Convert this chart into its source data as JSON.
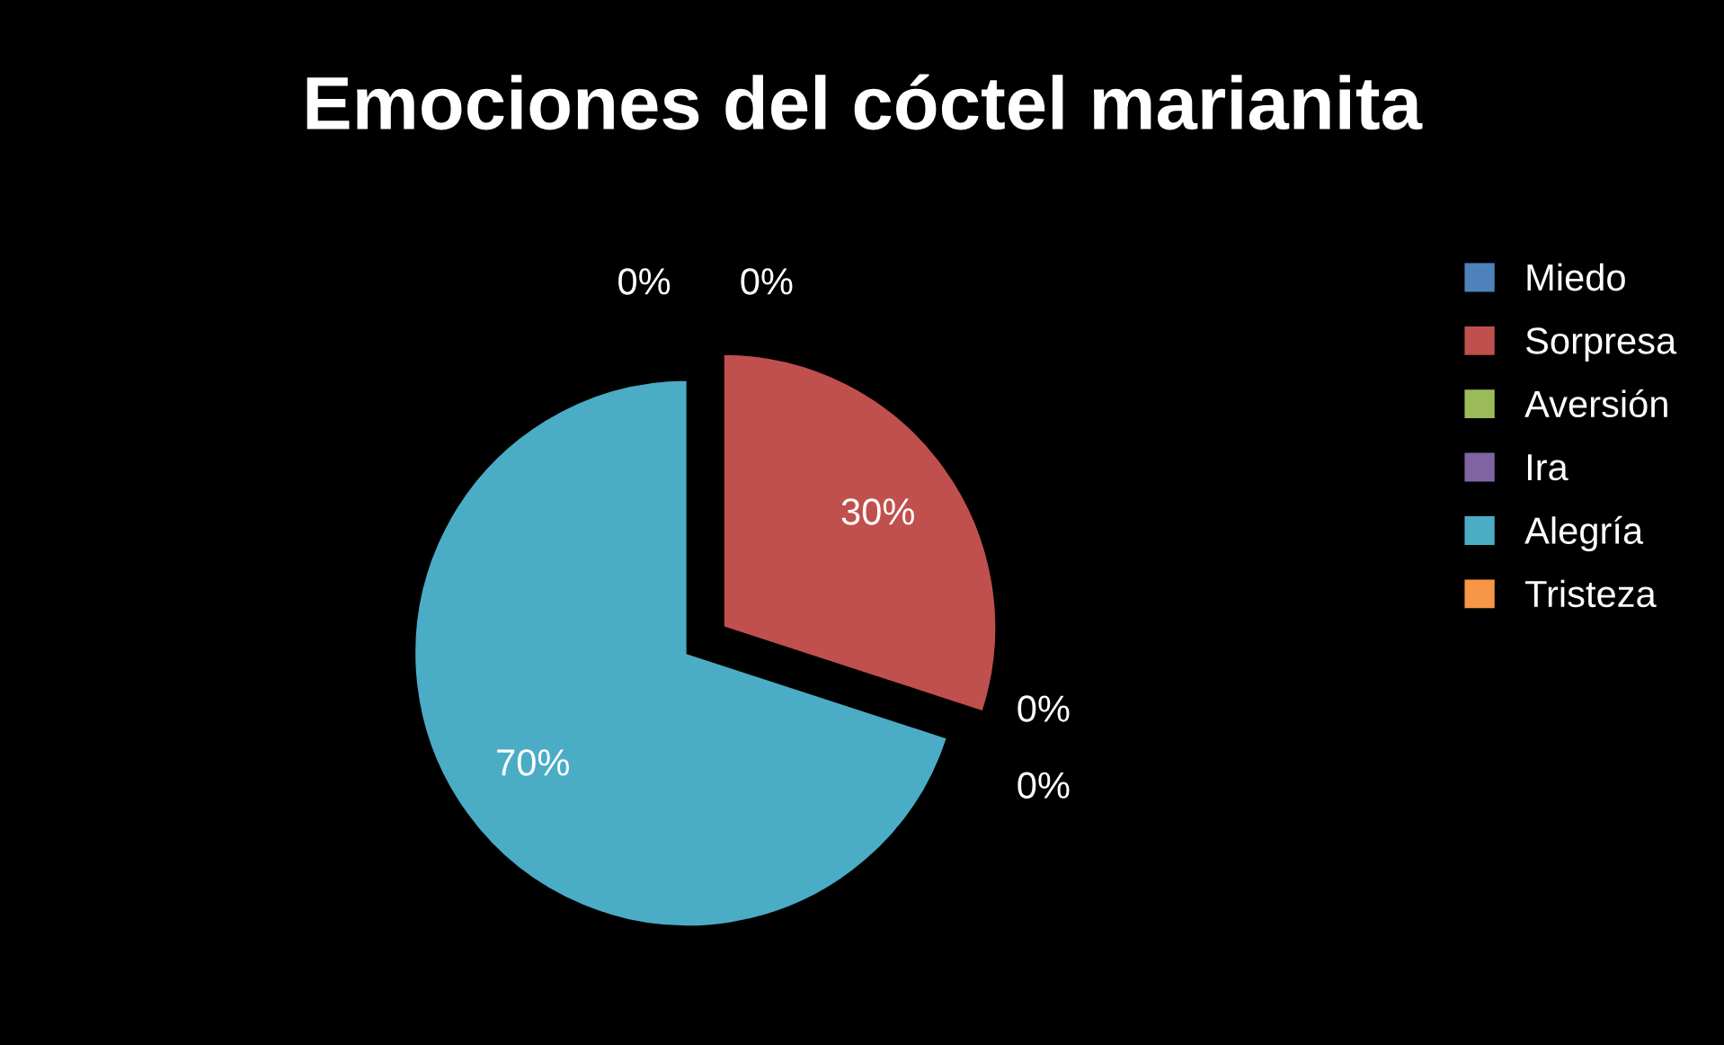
{
  "chart_data": {
    "type": "pie",
    "title": "Emociones del cóctel marianita",
    "categories": [
      "Miedo",
      "Sorpresa",
      "Aversión",
      "Ira",
      "Alegría",
      "Tristeza"
    ],
    "values": [
      0,
      30,
      0,
      0,
      70,
      0
    ],
    "value_labels": [
      "0%",
      "30%",
      "0%",
      "0%",
      "70%",
      "0%"
    ],
    "colors": [
      "#4f81bd",
      "#c0504d",
      "#9bbb59",
      "#8064a2",
      "#4bacc6",
      "#f79646"
    ],
    "legend": "right"
  }
}
